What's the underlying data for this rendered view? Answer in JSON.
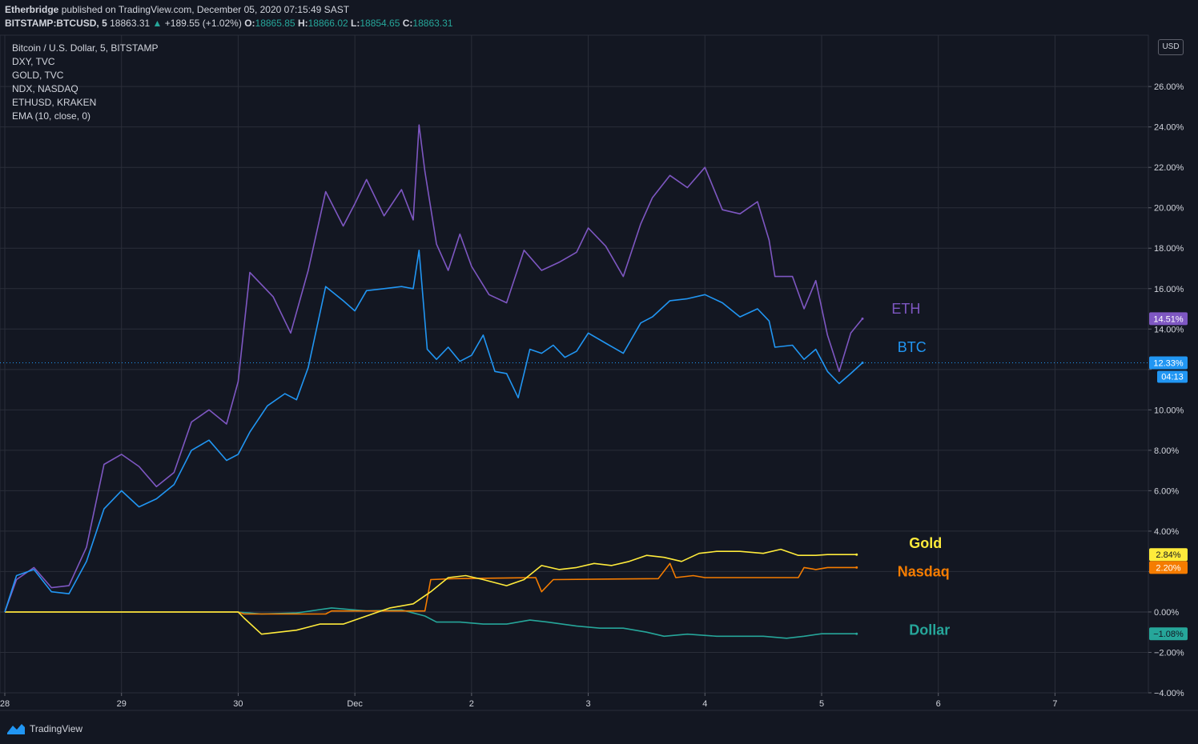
{
  "header": {
    "author": "Etherbridge",
    "published": "published on TradingView.com, December 05, 2020 07:15:49 SAST",
    "symbol": "BITSTAMP:BTCUSD, 5",
    "last": "18863.31",
    "change": "+189.55 (+1.02%)",
    "open_label": "O:",
    "open": "18865.85",
    "high_label": "H:",
    "high": "18866.02",
    "low_label": "L:",
    "low": "18854.65",
    "close_label": "C:",
    "close": "18863.31"
  },
  "legend": [
    "Bitcoin / U.S. Dollar, 5, BITSTAMP",
    "DXY, TVC",
    "GOLD, TVC",
    "NDX, NASDAQ",
    "ETHUSD, KRAKEN",
    "EMA (10, close, 0)"
  ],
  "currency_button": "USD",
  "footer": {
    "brand": "TradingView",
    "logo_icon": "tradingview-logo-icon"
  },
  "colors": {
    "background": "#131722",
    "grid": "#2a2e39",
    "eth": "#7e57c2",
    "btc": "#2196f3",
    "gold": "#ffeb3b",
    "nasdaq": "#f57c00",
    "dollar": "#26a69a"
  },
  "chart_data": {
    "type": "line",
    "scale": "percent",
    "y_ticks": [
      26,
      24,
      22,
      20,
      18,
      16,
      14,
      12,
      10,
      8,
      6,
      4,
      2,
      0,
      -2,
      -4
    ],
    "y_tick_labels": [
      "26.00%",
      "24.00%",
      "22.00%",
      "20.00%",
      "18.00%",
      "16.00%",
      "14.00%",
      "",
      "10.00%",
      "8.00%",
      "6.00%",
      "4.00%",
      "",
      "0.00%",
      "−2.00%",
      "−4.00%"
    ],
    "x_ticks": [
      0,
      1,
      2,
      3,
      4,
      5,
      6,
      7,
      8,
      9
    ],
    "x_tick_labels": [
      "28",
      "29",
      "30",
      "Dec",
      "2",
      "3",
      "4",
      "5",
      "6",
      "7"
    ],
    "xlim": [
      0,
      9.8
    ],
    "ylim": [
      -4,
      28.5
    ],
    "countdown": "04:13",
    "series": [
      {
        "name": "ETH",
        "color": "#7e57c2",
        "last_label": "14.51%",
        "points": [
          [
            0,
            0
          ],
          [
            0.1,
            1.6
          ],
          [
            0.25,
            2.2
          ],
          [
            0.4,
            1.2
          ],
          [
            0.55,
            1.3
          ],
          [
            0.7,
            3.2
          ],
          [
            0.85,
            7.3
          ],
          [
            1.0,
            7.8
          ],
          [
            1.15,
            7.2
          ],
          [
            1.3,
            6.2
          ],
          [
            1.45,
            6.9
          ],
          [
            1.6,
            9.4
          ],
          [
            1.75,
            10.0
          ],
          [
            1.9,
            9.3
          ],
          [
            2.0,
            11.4
          ],
          [
            2.1,
            16.8
          ],
          [
            2.3,
            15.6
          ],
          [
            2.45,
            13.8
          ],
          [
            2.6,
            16.9
          ],
          [
            2.75,
            20.8
          ],
          [
            2.9,
            19.1
          ],
          [
            3.0,
            20.2
          ],
          [
            3.1,
            21.4
          ],
          [
            3.25,
            19.6
          ],
          [
            3.4,
            20.9
          ],
          [
            3.5,
            19.4
          ],
          [
            3.55,
            24.1
          ],
          [
            3.6,
            21.8
          ],
          [
            3.7,
            18.2
          ],
          [
            3.8,
            16.9
          ],
          [
            3.9,
            18.7
          ],
          [
            4.0,
            17.1
          ],
          [
            4.15,
            15.7
          ],
          [
            4.3,
            15.3
          ],
          [
            4.45,
            17.9
          ],
          [
            4.6,
            16.9
          ],
          [
            4.75,
            17.3
          ],
          [
            4.9,
            17.8
          ],
          [
            5.0,
            19.0
          ],
          [
            5.15,
            18.1
          ],
          [
            5.3,
            16.6
          ],
          [
            5.45,
            19.2
          ],
          [
            5.55,
            20.5
          ],
          [
            5.7,
            21.6
          ],
          [
            5.85,
            21.0
          ],
          [
            6.0,
            22.0
          ],
          [
            6.15,
            19.9
          ],
          [
            6.3,
            19.7
          ],
          [
            6.45,
            20.3
          ],
          [
            6.55,
            18.4
          ],
          [
            6.6,
            16.6
          ],
          [
            6.75,
            16.6
          ],
          [
            6.85,
            15.0
          ],
          [
            6.95,
            16.4
          ],
          [
            7.05,
            13.7
          ],
          [
            7.15,
            11.9
          ],
          [
            7.25,
            13.8
          ],
          [
            7.35,
            14.51
          ]
        ]
      },
      {
        "name": "BTC",
        "color": "#2196f3",
        "last_label": "12.33%",
        "points": [
          [
            0,
            0
          ],
          [
            0.1,
            1.8
          ],
          [
            0.25,
            2.1
          ],
          [
            0.4,
            1.0
          ],
          [
            0.55,
            0.9
          ],
          [
            0.7,
            2.5
          ],
          [
            0.85,
            5.1
          ],
          [
            1.0,
            6.0
          ],
          [
            1.15,
            5.2
          ],
          [
            1.3,
            5.6
          ],
          [
            1.45,
            6.3
          ],
          [
            1.6,
            8.0
          ],
          [
            1.75,
            8.5
          ],
          [
            1.9,
            7.5
          ],
          [
            2.0,
            7.8
          ],
          [
            2.1,
            8.9
          ],
          [
            2.25,
            10.2
          ],
          [
            2.4,
            10.8
          ],
          [
            2.5,
            10.5
          ],
          [
            2.6,
            12.1
          ],
          [
            2.75,
            16.1
          ],
          [
            2.9,
            15.4
          ],
          [
            3.0,
            14.9
          ],
          [
            3.1,
            15.9
          ],
          [
            3.25,
            16.0
          ],
          [
            3.4,
            16.1
          ],
          [
            3.5,
            16.0
          ],
          [
            3.55,
            17.9
          ],
          [
            3.62,
            13.0
          ],
          [
            3.7,
            12.5
          ],
          [
            3.8,
            13.1
          ],
          [
            3.9,
            12.4
          ],
          [
            4.0,
            12.7
          ],
          [
            4.1,
            13.7
          ],
          [
            4.2,
            11.9
          ],
          [
            4.3,
            11.8
          ],
          [
            4.4,
            10.6
          ],
          [
            4.5,
            13.0
          ],
          [
            4.6,
            12.8
          ],
          [
            4.7,
            13.2
          ],
          [
            4.8,
            12.6
          ],
          [
            4.9,
            12.9
          ],
          [
            5.0,
            13.8
          ],
          [
            5.15,
            13.3
          ],
          [
            5.3,
            12.8
          ],
          [
            5.45,
            14.3
          ],
          [
            5.55,
            14.6
          ],
          [
            5.7,
            15.4
          ],
          [
            5.85,
            15.5
          ],
          [
            6.0,
            15.7
          ],
          [
            6.15,
            15.3
          ],
          [
            6.3,
            14.6
          ],
          [
            6.45,
            15.0
          ],
          [
            6.55,
            14.4
          ],
          [
            6.6,
            13.1
          ],
          [
            6.75,
            13.2
          ],
          [
            6.85,
            12.5
          ],
          [
            6.95,
            13.0
          ],
          [
            7.05,
            11.9
          ],
          [
            7.15,
            11.3
          ],
          [
            7.25,
            11.8
          ],
          [
            7.35,
            12.33
          ]
        ]
      },
      {
        "name": "Gold",
        "color": "#ffeb3b",
        "last_label": "2.84%",
        "points": [
          [
            0,
            0
          ],
          [
            2.0,
            0
          ],
          [
            2.05,
            -0.3
          ],
          [
            2.2,
            -1.1
          ],
          [
            2.35,
            -1.0
          ],
          [
            2.5,
            -0.9
          ],
          [
            2.7,
            -0.6
          ],
          [
            2.9,
            -0.6
          ],
          [
            3.1,
            -0.2
          ],
          [
            3.3,
            0.2
          ],
          [
            3.5,
            0.4
          ],
          [
            3.65,
            1.0
          ],
          [
            3.8,
            1.7
          ],
          [
            3.95,
            1.8
          ],
          [
            4.1,
            1.6
          ],
          [
            4.3,
            1.3
          ],
          [
            4.45,
            1.6
          ],
          [
            4.6,
            2.3
          ],
          [
            4.75,
            2.1
          ],
          [
            4.9,
            2.2
          ],
          [
            5.05,
            2.4
          ],
          [
            5.2,
            2.3
          ],
          [
            5.35,
            2.5
          ],
          [
            5.5,
            2.8
          ],
          [
            5.65,
            2.7
          ],
          [
            5.8,
            2.5
          ],
          [
            5.95,
            2.9
          ],
          [
            6.1,
            3.0
          ],
          [
            6.3,
            3.0
          ],
          [
            6.5,
            2.9
          ],
          [
            6.65,
            3.1
          ],
          [
            6.8,
            2.8
          ],
          [
            6.95,
            2.8
          ],
          [
            7.05,
            2.84
          ],
          [
            7.3,
            2.84
          ]
        ]
      },
      {
        "name": "Nasdaq",
        "color": "#f57c00",
        "last_label": "2.20%",
        "points": [
          [
            0,
            0
          ],
          [
            2.0,
            0
          ],
          [
            2.05,
            -0.1
          ],
          [
            2.75,
            -0.1
          ],
          [
            2.8,
            0.05
          ],
          [
            3.6,
            0.05
          ],
          [
            3.65,
            1.6
          ],
          [
            3.85,
            1.65
          ],
          [
            4.55,
            1.7
          ],
          [
            4.6,
            1.0
          ],
          [
            4.7,
            1.6
          ],
          [
            5.6,
            1.65
          ],
          [
            5.7,
            2.4
          ],
          [
            5.75,
            1.7
          ],
          [
            5.9,
            1.8
          ],
          [
            6.0,
            1.7
          ],
          [
            6.8,
            1.7
          ],
          [
            6.85,
            2.2
          ],
          [
            6.95,
            2.1
          ],
          [
            7.05,
            2.2
          ],
          [
            7.3,
            2.2
          ]
        ]
      },
      {
        "name": "Dollar",
        "color": "#26a69a",
        "last_label": "−1.08%",
        "points": [
          [
            0,
            0
          ],
          [
            2.0,
            0
          ],
          [
            2.2,
            -0.1
          ],
          [
            2.5,
            -0.05
          ],
          [
            2.8,
            0.2
          ],
          [
            3.1,
            0.05
          ],
          [
            3.4,
            0.1
          ],
          [
            3.6,
            -0.2
          ],
          [
            3.7,
            -0.5
          ],
          [
            3.9,
            -0.5
          ],
          [
            4.1,
            -0.6
          ],
          [
            4.3,
            -0.6
          ],
          [
            4.5,
            -0.4
          ],
          [
            4.65,
            -0.5
          ],
          [
            4.9,
            -0.7
          ],
          [
            5.1,
            -0.8
          ],
          [
            5.3,
            -0.8
          ],
          [
            5.5,
            -1.0
          ],
          [
            5.65,
            -1.2
          ],
          [
            5.85,
            -1.1
          ],
          [
            6.1,
            -1.2
          ],
          [
            6.3,
            -1.2
          ],
          [
            6.5,
            -1.2
          ],
          [
            6.7,
            -1.3
          ],
          [
            6.85,
            -1.2
          ],
          [
            7.0,
            -1.08
          ],
          [
            7.3,
            -1.08
          ]
        ]
      }
    ],
    "annotations": [
      {
        "text": "ETH",
        "color": "#7e57c2",
        "x": 7.6,
        "y": 15.0,
        "bold": false
      },
      {
        "text": "BTC",
        "color": "#2196f3",
        "x": 7.65,
        "y": 13.1,
        "bold": false
      },
      {
        "text": "Gold",
        "color": "#ffeb3b",
        "x": 7.75,
        "y": 3.4,
        "bold": true
      },
      {
        "text": "Nasdaq",
        "color": "#f57c00",
        "x": 7.65,
        "y": 2.0,
        "bold": true
      },
      {
        "text": "Dollar",
        "color": "#26a69a",
        "x": 7.75,
        "y": -0.9,
        "bold": true
      }
    ],
    "current_price_y": 12.33
  }
}
